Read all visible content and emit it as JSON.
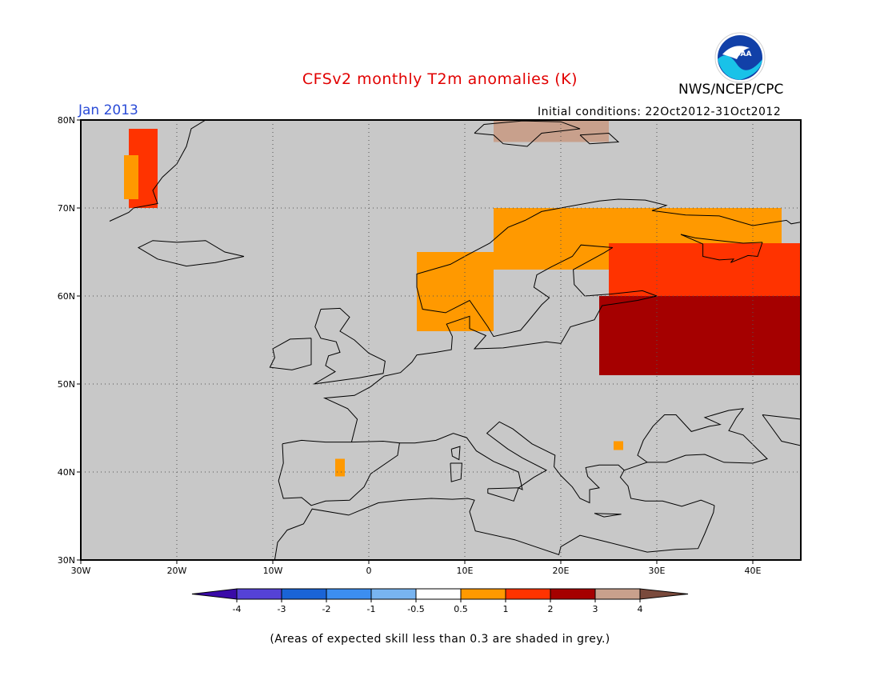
{
  "title": "CFSv2 monthly T2m anomalies (K)",
  "organization": "NWS/NCEP/CPC",
  "logo_text": "NOAA",
  "period": "Jan 2013",
  "initial_conditions": "Initial conditions: 22Oct2012-31Oct2012",
  "footnote": "(Areas of expected skill less than 0.3 are shaded in grey.)",
  "map": {
    "lon_range": [
      -30,
      45
    ],
    "lat_range": [
      30,
      80
    ],
    "lat_ticks": [
      "80N",
      "70N",
      "60N",
      "50N",
      "40N",
      "30N"
    ],
    "lon_ticks": [
      "30W",
      "20W",
      "10W",
      "0",
      "10E",
      "20E",
      "30E",
      "40E"
    ],
    "background_color": "#c8c8c8",
    "grid": "dotted"
  },
  "colorbar": {
    "labels": [
      "-4",
      "-3",
      "-2",
      "-1",
      "-0.5",
      "0.5",
      "1",
      "2",
      "3",
      "4"
    ],
    "colors": [
      "#3a0aa8",
      "#5542d6",
      "#1a64d6",
      "#3c8ef0",
      "#78b4f0",
      "#ffffff",
      "#ff9900",
      "#ff3300",
      "#a50000",
      "#c8a08c",
      "#7a4a3c"
    ]
  },
  "anomaly_regions": [
    {
      "region": "Greenland east coast",
      "lon": [
        -25,
        -22
      ],
      "lat": [
        70,
        79
      ],
      "level": "1 to 2",
      "color": "#ff3300"
    },
    {
      "region": "Greenland east coast",
      "lon": [
        -25.5,
        -24
      ],
      "lat": [
        71,
        76
      ],
      "level": "0.5 to 1",
      "color": "#ff9900"
    },
    {
      "region": "Svalbard",
      "lon": [
        13,
        25
      ],
      "lat": [
        77.5,
        80
      ],
      "level": "3 to 4",
      "color": "#c8a08c"
    },
    {
      "region": "Norway coast",
      "lon": [
        5,
        13
      ],
      "lat": [
        56,
        65
      ],
      "level": "0.5 to 1",
      "color": "#ff9900"
    },
    {
      "region": "Northern Scandinavia",
      "lon": [
        13,
        43
      ],
      "lat": [
        63,
        70
      ],
      "level": "0.5 to 1",
      "color": "#ff9900"
    },
    {
      "region": "Finland and NW Russia",
      "lon": [
        25,
        45
      ],
      "lat": [
        58,
        66
      ],
      "level": "1 to 2",
      "color": "#ff3300"
    },
    {
      "region": "Western Russia",
      "lon": [
        24,
        45
      ],
      "lat": [
        51,
        60
      ],
      "level": "2 to 3",
      "color": "#a50000"
    },
    {
      "region": "Spain",
      "lon": [
        -3.5,
        -2.5
      ],
      "lat": [
        39.5,
        41.5
      ],
      "level": "0.5 to 1",
      "color": "#ff9900"
    },
    {
      "region": "Bulgaria",
      "lon": [
        25.5,
        26.5
      ],
      "lat": [
        42.5,
        43.5
      ],
      "level": "0.5 to 1",
      "color": "#ff9900"
    }
  ]
}
